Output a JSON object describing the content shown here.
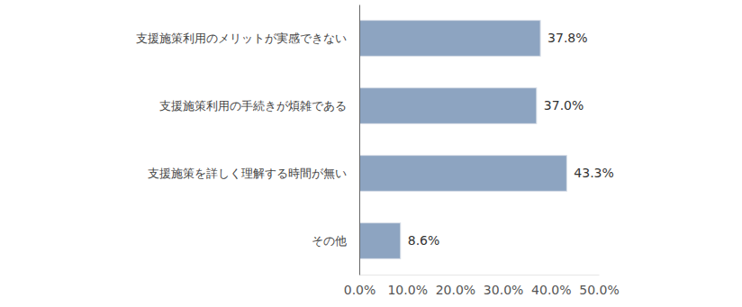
{
  "chart_data": {
    "type": "bar",
    "orientation": "horizontal",
    "categories": [
      "支援施策利用のメリットが実感できない",
      "支援施策利用の手続きが煩雑である",
      "支援施策を詳しく理解する時間が無い",
      "その他"
    ],
    "values": [
      37.8,
      37.0,
      43.3,
      8.6
    ],
    "value_labels": [
      "37.8%",
      "37.0%",
      "43.3%",
      "8.6%"
    ],
    "data_labels": true,
    "color": "#8da4c1",
    "xlim": [
      0,
      50
    ],
    "xticks": [
      {
        "value": 0,
        "label": "0.0%"
      },
      {
        "value": 10,
        "label": "10.0%"
      },
      {
        "value": 20,
        "label": "20.0%"
      },
      {
        "value": 30,
        "label": "30.0%"
      },
      {
        "value": 40,
        "label": "40.0%"
      },
      {
        "value": 50,
        "label": "50.0%"
      }
    ],
    "grid": false
  }
}
